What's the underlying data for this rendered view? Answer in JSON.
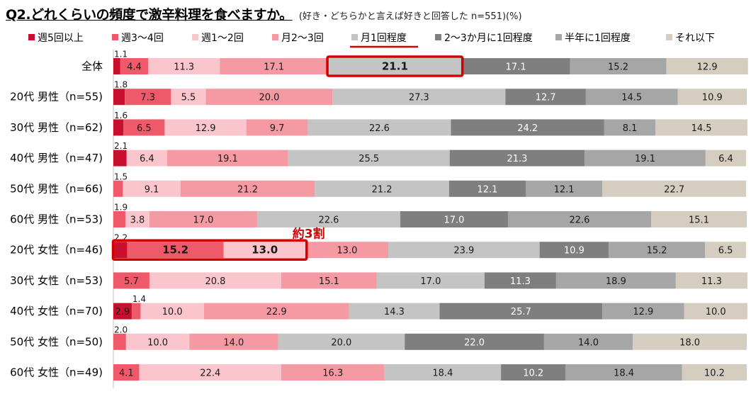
{
  "title": "Q2.どれくらいの頻度で激辛料理を食べますか。",
  "subtitle": "(好き・どちらかと言えば好きと回答した n=551)(%)",
  "annotation": "約3割",
  "chart_data": {
    "type": "bar",
    "orientation": "horizontal",
    "stacked": true,
    "percent": true,
    "xlim": [
      0,
      100
    ],
    "categories": [
      "全体",
      "20代 男性（n=55)",
      "30代 男性（n=62)",
      "40代 男性（n=47)",
      "50代 男性（n=66)",
      "60代 男性（n=53)",
      "20代 女性（n=46)",
      "30代 女性（n=53)",
      "40代 女性（n=70)",
      "50代 女性（n=50)",
      "60代 女性（n=49)"
    ],
    "series": [
      {
        "name": "週5回以上",
        "color": "#c8102e",
        "values": [
          1.1,
          1.8,
          1.6,
          2.1,
          0,
          0,
          2.2,
          0,
          2.9,
          0,
          0
        ]
      },
      {
        "name": "週3～4回",
        "color": "#ee5a6a",
        "values": [
          4.4,
          7.3,
          6.5,
          0,
          1.5,
          1.9,
          15.2,
          5.7,
          1.4,
          2.0,
          4.1
        ]
      },
      {
        "name": "週1～2回",
        "color": "#fac5cc",
        "values": [
          11.3,
          5.5,
          12.9,
          6.4,
          9.1,
          3.8,
          13.0,
          20.8,
          10.0,
          10.0,
          22.4
        ]
      },
      {
        "name": "月2～3回",
        "color": "#f59aa3",
        "values": [
          17.1,
          20.0,
          9.7,
          19.1,
          21.2,
          17.0,
          13.0,
          15.1,
          22.9,
          14.0,
          16.3
        ]
      },
      {
        "name": "月1回程度",
        "color": "#c4c4c4",
        "values": [
          21.1,
          27.3,
          22.6,
          25.5,
          21.2,
          22.6,
          23.9,
          17.0,
          14.3,
          20.0,
          18.4
        ]
      },
      {
        "name": "2～3か月に1回程度",
        "color": "#7f7f7f",
        "values": [
          17.1,
          12.7,
          24.2,
          21.3,
          12.1,
          17.0,
          10.9,
          11.3,
          25.7,
          22.0,
          10.2
        ]
      },
      {
        "name": "半年に1回程度",
        "color": "#a6a6a6",
        "values": [
          15.2,
          14.5,
          8.1,
          19.1,
          12.1,
          22.6,
          15.2,
          18.9,
          12.9,
          14.0,
          18.4
        ]
      },
      {
        "name": "それ以下",
        "color": "#d5cdbf",
        "values": [
          12.9,
          10.9,
          14.5,
          6.4,
          22.7,
          15.1,
          6.5,
          11.3,
          10.0,
          18.0,
          10.2
        ]
      }
    ],
    "highlights": [
      {
        "row": 0,
        "series": [
          4
        ],
        "color": "#d40000"
      },
      {
        "row": 6,
        "series": [
          1,
          2
        ],
        "color": "#d40000",
        "label": "約3割"
      }
    ],
    "emphasized_legend": "月1回程度"
  }
}
